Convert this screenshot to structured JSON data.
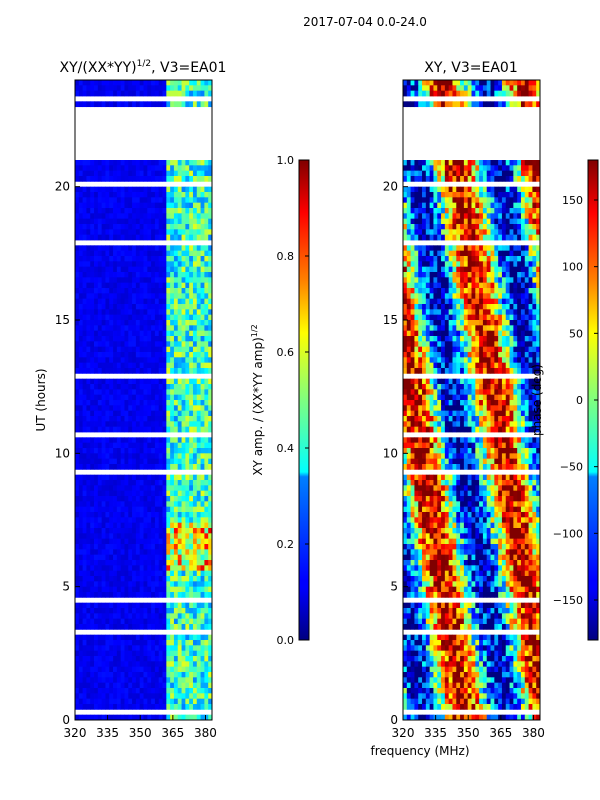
{
  "suptitle": "2017-07-04 0.0-24.0",
  "shared_xlabel": "frequency (MHz)",
  "chart_data": [
    {
      "type": "heatmap",
      "title_main": "XY/(XX*YY)",
      "title_sup": "1/2",
      "title_tail": ", V3=EA01",
      "ylabel": "UT (hours)",
      "xlim": [
        320,
        383
      ],
      "ylim": [
        0,
        24
      ],
      "x_ticks": [
        "320",
        "335",
        "350",
        "365",
        "380"
      ],
      "x_tick_values": [
        320,
        335,
        350,
        365,
        380
      ],
      "y_ticks": [
        "0",
        "5",
        "10",
        "15",
        "20"
      ],
      "y_tick_values": [
        0,
        5,
        10,
        15,
        20
      ],
      "gaps_hours": [
        [
          21.1,
          22.9
        ],
        [
          23.2,
          23.4
        ],
        [
          0.3,
          0.45
        ],
        [
          9.3,
          9.45
        ],
        [
          10.6,
          10.75
        ],
        [
          12.8,
          12.95
        ],
        [
          17.8,
          17.95
        ],
        [
          20.1,
          20.25
        ],
        [
          3.3,
          3.45
        ],
        [
          4.4,
          4.55
        ]
      ],
      "colorbar": {
        "label_main": "XY amp. / (XX*YY amp)",
        "label_sup": "1/2",
        "range": [
          0.0,
          1.0
        ],
        "ticks": [
          "0.0",
          "0.2",
          "0.4",
          "0.6",
          "0.8",
          "1.0"
        ],
        "tick_values": [
          0.0,
          0.2,
          0.4,
          0.6,
          0.8,
          1.0
        ]
      }
    },
    {
      "type": "heatmap",
      "title": "XY, V3=EA01",
      "xlim": [
        320,
        383
      ],
      "ylim": [
        0,
        24
      ],
      "x_ticks": [
        "320",
        "335",
        "350",
        "365",
        "380"
      ],
      "x_tick_values": [
        320,
        335,
        350,
        365,
        380
      ],
      "y_ticks": [
        "0",
        "5",
        "10",
        "15",
        "20"
      ],
      "y_tick_values": [
        0,
        5,
        10,
        15,
        20
      ],
      "gaps_hours": [
        [
          21.1,
          22.9
        ],
        [
          23.2,
          23.4
        ],
        [
          0.3,
          0.45
        ],
        [
          9.3,
          9.45
        ],
        [
          10.6,
          10.75
        ],
        [
          12.8,
          12.95
        ],
        [
          17.8,
          17.95
        ],
        [
          20.1,
          20.25
        ],
        [
          3.3,
          3.45
        ],
        [
          4.4,
          4.55
        ]
      ],
      "colorbar": {
        "label": "phase (deg)",
        "range": [
          -180,
          180
        ],
        "ticks": [
          "−150",
          "−100",
          "−50",
          "0",
          "50",
          "100",
          "150"
        ],
        "tick_values": [
          -150,
          -100,
          -50,
          0,
          50,
          100,
          150
        ]
      }
    }
  ]
}
